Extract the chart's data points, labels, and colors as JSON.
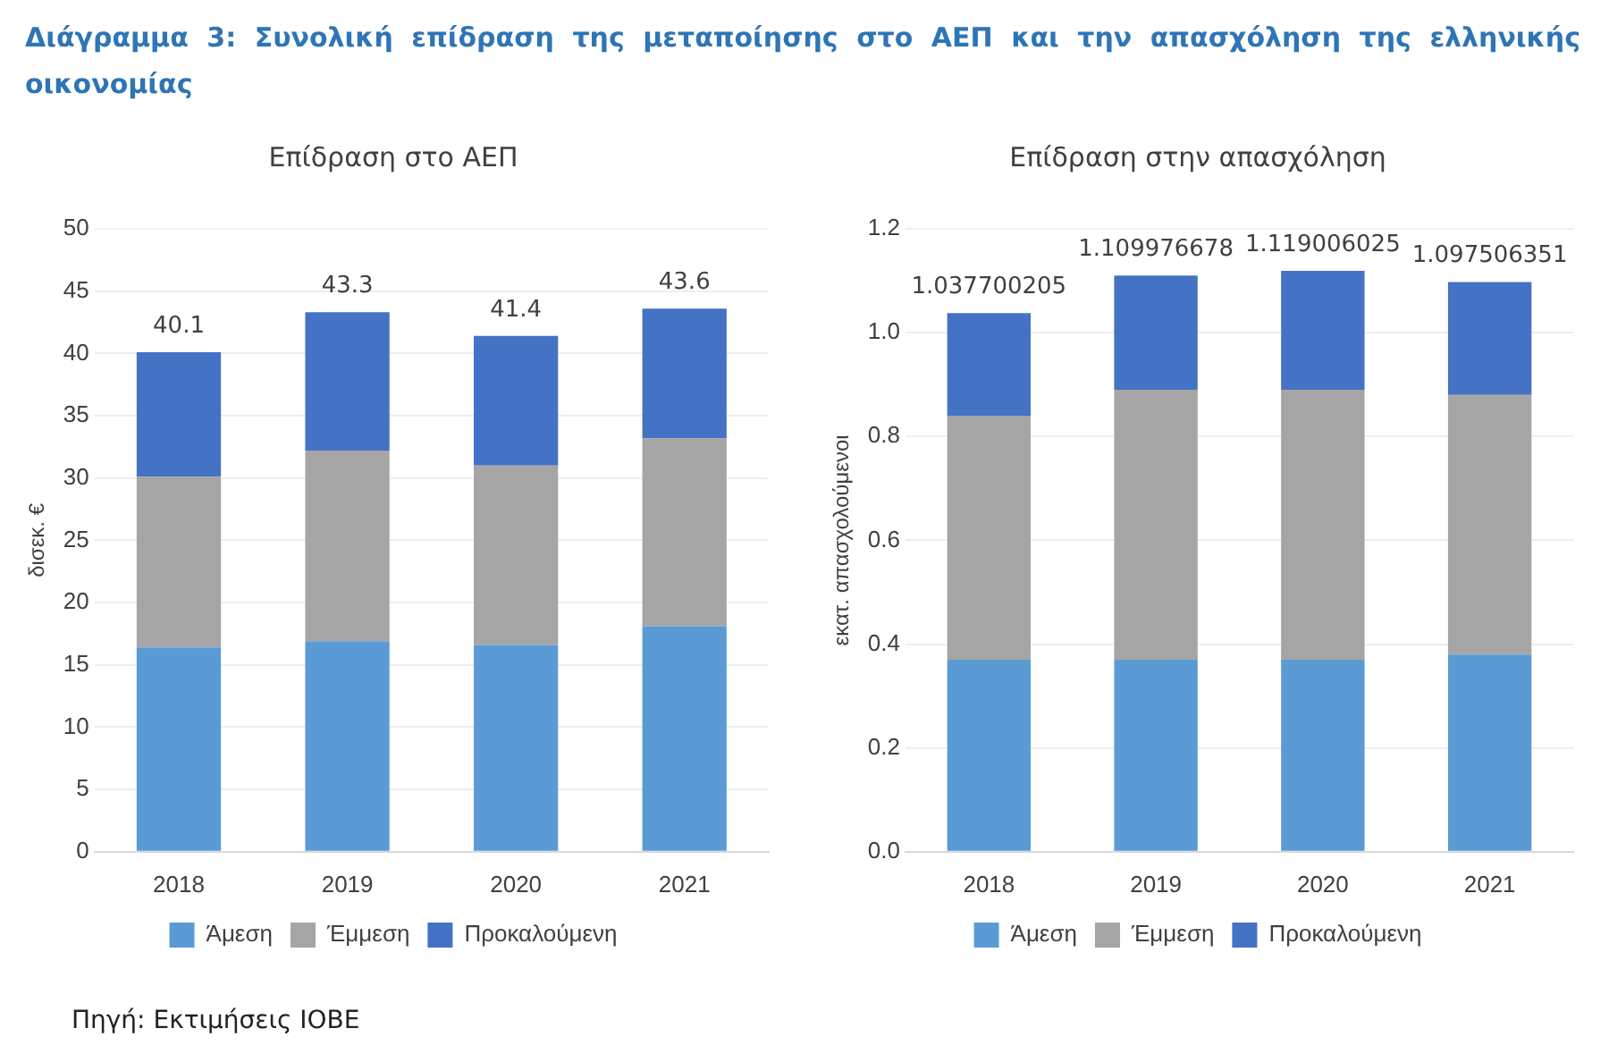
{
  "chart_data": [
    {
      "type": "bar",
      "title": "Επίδραση στο ΑΕΠ",
      "ylabel": "δισεκ. €",
      "categories": [
        "2018",
        "2019",
        "2020",
        "2021"
      ],
      "stacked": true,
      "series": [
        {
          "name": "Άμεση",
          "color": "#5b9bd5",
          "values": [
            16.4,
            16.9,
            16.6,
            18.1
          ]
        },
        {
          "name": "Έμμεση",
          "color": "#a5a5a5",
          "values": [
            13.7,
            15.3,
            14.4,
            15.1
          ]
        },
        {
          "name": "Προκαλούμενη",
          "color": "#4472c4",
          "values": [
            10.0,
            11.1,
            10.4,
            10.4
          ]
        }
      ],
      "totals": [
        "40.1",
        "43.3",
        "41.4",
        "43.6"
      ],
      "ylim": [
        0,
        50
      ],
      "yticks": [
        0,
        5,
        10,
        15,
        20,
        25,
        30,
        35,
        40,
        45,
        50
      ],
      "grid": "y",
      "legend": "bottom",
      "annotations": [
        "Διάγραμμα 3: Συνολική επίδραση της μεταποίησης στο ΑΕΠ και την απασχόληση της ελληνικής οικονομίας"
      ]
    },
    {
      "type": "bar",
      "title": "Επίδραση στην απασχόληση",
      "ylabel": "εκατ. απασχολούμενοι",
      "categories": [
        "2018",
        "2019",
        "2020",
        "2021"
      ],
      "stacked": true,
      "series": [
        {
          "name": "Άμεση",
          "color": "#5b9bd5",
          "values": [
            0.37,
            0.37,
            0.37,
            0.38
          ]
        },
        {
          "name": "Έμμεση",
          "color": "#a5a5a5",
          "values": [
            0.47,
            0.52,
            0.52,
            0.5
          ]
        },
        {
          "name": "Προκαλούμενη",
          "color": "#4472c4",
          "values": [
            0.197700205,
            0.219976678,
            0.229006025,
            0.217506351
          ]
        }
      ],
      "totals": [
        "1.037700205",
        "1.109976678",
        "1.119006025",
        "1.097506351"
      ],
      "ylim": [
        0,
        1.2
      ],
      "yticks": [
        {
          "value": 0,
          "label": "0.0"
        },
        {
          "value": 0.2,
          "label": "0.2"
        },
        {
          "value": 0.4,
          "label": "0.4"
        },
        {
          "value": 0.6,
          "label": "0.6"
        },
        {
          "value": 0.8,
          "label": "0.8"
        },
        {
          "value": 1,
          "label": "1.0"
        },
        {
          "value": 1.2,
          "label": "1.2"
        }
      ],
      "grid": "y",
      "legend": "bottom",
      "annotations": [
        "Πηγή: Εκτιμήσεις IOBE"
      ]
    }
  ]
}
